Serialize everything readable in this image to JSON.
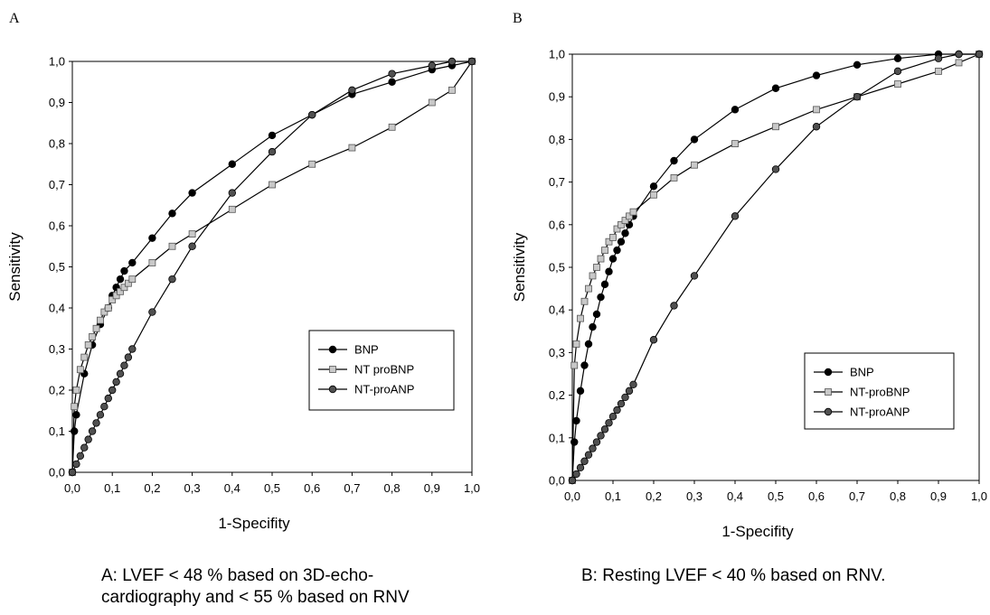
{
  "panels": [
    {
      "letter": "A",
      "caption": "A: LVEF < 48 % based on 3D-echo-\ncardiography and < 55 % based on RNV"
    },
    {
      "letter": "B",
      "caption": "B: Resting LVEF < 40 % based on RNV."
    }
  ],
  "chart_data": [
    {
      "type": "line",
      "xlabel": "1-Specifity",
      "ylabel": "Sensitivity",
      "xlim": [
        0,
        1
      ],
      "ylim": [
        0,
        1
      ],
      "x_ticks": [
        "0,0",
        "0,1",
        "0,2",
        "0,3",
        "0,4",
        "0,5",
        "0,6",
        "0,7",
        "0,8",
        "0,9",
        "1,0"
      ],
      "y_ticks": [
        "0,0",
        "0,1",
        "0,2",
        "0,3",
        "0,4",
        "0,5",
        "0,6",
        "0,7",
        "0,8",
        "0,9",
        "1,0"
      ],
      "grid": false,
      "legend_position": "bottom-right",
      "series": [
        {
          "name": "BNP",
          "marker": "filled-circle",
          "color": "#000000",
          "x": [
            0,
            0.005,
            0.01,
            0.03,
            0.05,
            0.07,
            0.09,
            0.1,
            0.11,
            0.12,
            0.13,
            0.15,
            0.2,
            0.25,
            0.3,
            0.4,
            0.5,
            0.6,
            0.7,
            0.8,
            0.9,
            0.95,
            1.0
          ],
          "y": [
            0,
            0.1,
            0.14,
            0.24,
            0.31,
            0.36,
            0.4,
            0.43,
            0.45,
            0.47,
            0.49,
            0.51,
            0.57,
            0.63,
            0.68,
            0.75,
            0.82,
            0.87,
            0.92,
            0.95,
            0.98,
            0.99,
            1.0
          ]
        },
        {
          "name": "NT proBNP",
          "marker": "open-square",
          "color": "#c8c8c8",
          "x": [
            0,
            0.005,
            0.01,
            0.02,
            0.03,
            0.04,
            0.05,
            0.06,
            0.07,
            0.08,
            0.09,
            0.1,
            0.11,
            0.12,
            0.13,
            0.14,
            0.15,
            0.2,
            0.25,
            0.3,
            0.4,
            0.5,
            0.6,
            0.7,
            0.8,
            0.9,
            0.95,
            1.0
          ],
          "y": [
            0,
            0.16,
            0.2,
            0.25,
            0.28,
            0.31,
            0.33,
            0.35,
            0.37,
            0.39,
            0.4,
            0.42,
            0.43,
            0.44,
            0.45,
            0.46,
            0.47,
            0.51,
            0.55,
            0.58,
            0.64,
            0.7,
            0.75,
            0.79,
            0.84,
            0.9,
            0.93,
            1.0
          ]
        },
        {
          "name": "NT-proANP",
          "marker": "filled-circle",
          "color": "#505050",
          "x": [
            0,
            0.01,
            0.02,
            0.03,
            0.04,
            0.05,
            0.06,
            0.07,
            0.08,
            0.09,
            0.1,
            0.11,
            0.12,
            0.13,
            0.14,
            0.15,
            0.2,
            0.25,
            0.3,
            0.4,
            0.5,
            0.6,
            0.7,
            0.8,
            0.9,
            0.95,
            1.0
          ],
          "y": [
            0,
            0.02,
            0.04,
            0.06,
            0.08,
            0.1,
            0.12,
            0.14,
            0.16,
            0.18,
            0.2,
            0.22,
            0.24,
            0.26,
            0.28,
            0.3,
            0.39,
            0.47,
            0.55,
            0.68,
            0.78,
            0.87,
            0.93,
            0.97,
            0.99,
            1.0,
            1.0
          ]
        }
      ]
    },
    {
      "type": "line",
      "xlabel": "1-Specifity",
      "ylabel": "Sensitivity",
      "xlim": [
        0,
        1
      ],
      "ylim": [
        0,
        1
      ],
      "x_ticks": [
        "0,0",
        "0,1",
        "0,2",
        "0,3",
        "0,4",
        "0,5",
        "0,6",
        "0,7",
        "0,8",
        "0,9",
        "1,0"
      ],
      "y_ticks": [
        "0,0",
        "0,1",
        "0,2",
        "0,3",
        "0,4",
        "0,5",
        "0,6",
        "0,7",
        "0,8",
        "0,9",
        "1,0"
      ],
      "grid": false,
      "legend_position": "bottom-right",
      "series": [
        {
          "name": "BNP",
          "marker": "filled-circle",
          "color": "#000000",
          "x": [
            0,
            0.005,
            0.01,
            0.02,
            0.03,
            0.04,
            0.05,
            0.06,
            0.07,
            0.08,
            0.09,
            0.1,
            0.11,
            0.12,
            0.13,
            0.14,
            0.15,
            0.2,
            0.25,
            0.3,
            0.4,
            0.5,
            0.6,
            0.7,
            0.8,
            0.9,
            0.95,
            1.0
          ],
          "y": [
            0,
            0.09,
            0.14,
            0.21,
            0.27,
            0.32,
            0.36,
            0.39,
            0.43,
            0.46,
            0.49,
            0.52,
            0.54,
            0.56,
            0.58,
            0.6,
            0.62,
            0.69,
            0.75,
            0.8,
            0.87,
            0.92,
            0.95,
            0.975,
            0.99,
            1.0,
            1.0,
            1.0
          ]
        },
        {
          "name": "NT-proBNP",
          "marker": "open-square",
          "color": "#c8c8c8",
          "x": [
            0,
            0.005,
            0.01,
            0.02,
            0.03,
            0.04,
            0.05,
            0.06,
            0.07,
            0.08,
            0.09,
            0.1,
            0.11,
            0.12,
            0.13,
            0.14,
            0.15,
            0.2,
            0.25,
            0.3,
            0.4,
            0.5,
            0.6,
            0.7,
            0.8,
            0.9,
            0.95,
            1.0
          ],
          "y": [
            0,
            0.27,
            0.32,
            0.38,
            0.42,
            0.45,
            0.48,
            0.5,
            0.52,
            0.54,
            0.56,
            0.57,
            0.59,
            0.6,
            0.61,
            0.62,
            0.63,
            0.67,
            0.71,
            0.74,
            0.79,
            0.83,
            0.87,
            0.9,
            0.93,
            0.96,
            0.98,
            1.0
          ]
        },
        {
          "name": "NT-proANP",
          "marker": "filled-circle",
          "color": "#505050",
          "x": [
            0,
            0.01,
            0.02,
            0.03,
            0.04,
            0.05,
            0.06,
            0.07,
            0.08,
            0.09,
            0.1,
            0.11,
            0.12,
            0.13,
            0.14,
            0.15,
            0.2,
            0.25,
            0.3,
            0.4,
            0.5,
            0.6,
            0.7,
            0.8,
            0.9,
            0.95,
            1.0
          ],
          "y": [
            0,
            0.015,
            0.03,
            0.045,
            0.06,
            0.075,
            0.09,
            0.105,
            0.12,
            0.135,
            0.15,
            0.165,
            0.18,
            0.195,
            0.21,
            0.225,
            0.33,
            0.41,
            0.48,
            0.62,
            0.73,
            0.83,
            0.9,
            0.96,
            0.99,
            1.0,
            1.0
          ]
        }
      ]
    }
  ]
}
